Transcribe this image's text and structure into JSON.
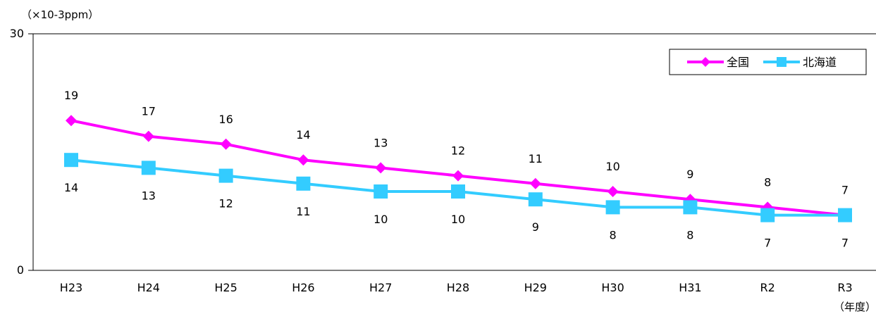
{
  "chart_data": {
    "type": "line",
    "ylabel": "（×10-3ppm）",
    "xlabel": "（年度）",
    "ylim": [
      0,
      30
    ],
    "yticks": [
      "0",
      "30"
    ],
    "categories": [
      "H23",
      "H24",
      "H25",
      "H26",
      "H27",
      "H28",
      "H29",
      "H30",
      "H31",
      "R2",
      "R3"
    ],
    "grid": false,
    "legend_position": "top-right",
    "series": [
      {
        "name": "全国",
        "color": "#ff00ff",
        "marker": "diamond",
        "values": [
          19,
          17,
          16,
          14,
          13,
          12,
          11,
          10,
          9,
          8,
          7
        ],
        "labels": [
          "19",
          "17",
          "16",
          "14",
          "13",
          "12",
          "11",
          "10",
          "9",
          "8",
          "7"
        ],
        "label_position": "above"
      },
      {
        "name": "北海道",
        "color": "#33ccff",
        "marker": "square",
        "values": [
          14,
          13,
          12,
          11,
          10,
          10,
          9,
          8,
          8,
          7,
          7
        ],
        "labels": [
          "14",
          "13",
          "12",
          "11",
          "10",
          "10",
          "9",
          "8",
          "8",
          "7",
          "7"
        ],
        "label_position": "below"
      }
    ]
  }
}
